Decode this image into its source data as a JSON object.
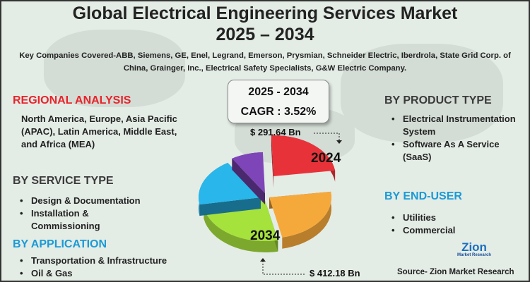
{
  "title": "Global Electrical Engineering Services Market",
  "years": "2025 – 2034",
  "companies": "Key Companies Covered-ABB, Siemens, GE, Enel, Legrand, Emerson, Prysmian, Schneider Electric, Iberdrola, State Grid Corp. of China, Grainger, Inc., Electrical Safety Specialists, G&W Electric Company.",
  "regional": {
    "heading": "REGIONAL ANALYSIS",
    "text": "North America, Europe, Asia Pacific (APAC), Latin America, Middle East, and Africa (MEA)",
    "color": "#e8232a"
  },
  "service": {
    "heading": "BY SERVICE TYPE",
    "items": [
      "Design & Documentation",
      "Installation & Commissioning"
    ],
    "color": "#3b3b3b"
  },
  "application": {
    "heading": "BY APPLICATION",
    "items": [
      "Transportation & Infrastructure",
      "Oil & Gas"
    ],
    "color": "#1a9ad6"
  },
  "product": {
    "heading": "BY PRODUCT TYPE",
    "items": [
      "Electrical Instrumentation System",
      "Software As A Service (SaaS)"
    ],
    "color": "#3b3b3b"
  },
  "enduser": {
    "heading": "BY END-USER",
    "items": [
      "Utilities",
      "Commercial"
    ],
    "color": "#1a9ad6"
  },
  "cagr": {
    "period": "2025 - 2034",
    "label": "CAGR : 3.52%"
  },
  "pie": {
    "label_2024": "2024",
    "label_2034": "2034",
    "value_2024": "$ 291.64 Bn",
    "value_2034": "$ 412.18 Bn",
    "colors": [
      "#e8323a",
      "#f6a93b",
      "#a6e23c",
      "#29b6ea",
      "#7e45b8"
    ]
  },
  "logo": {
    "name": "Zion",
    "sub": "Market Research"
  },
  "source": "Source- Zion Market Research"
}
